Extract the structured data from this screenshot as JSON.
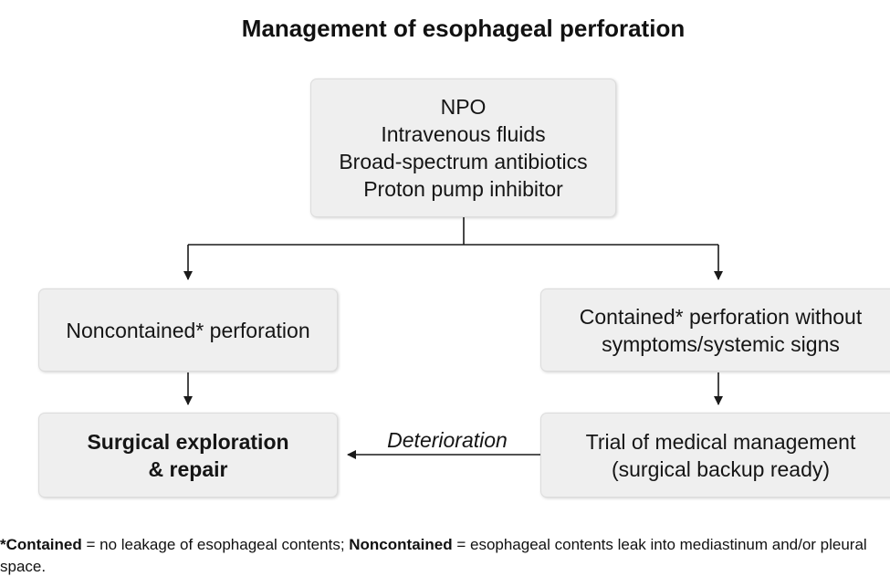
{
  "title": "Management of esophageal perforation",
  "nodes": {
    "initial": {
      "lines": [
        "NPO",
        "Intravenous fluids",
        "Broad-spectrum antibiotics",
        "Proton pump inhibitor"
      ]
    },
    "noncontained": {
      "lines": [
        "Noncontained* perforation"
      ]
    },
    "contained": {
      "lines": [
        "Contained* perforation without",
        "symptoms/systemic signs"
      ]
    },
    "surgical": {
      "lines": [
        "Surgical exploration",
        "& repair"
      ]
    },
    "trial": {
      "lines": [
        "Trial of medical management",
        "(surgical backup ready)"
      ]
    }
  },
  "edges": {
    "deterioration_label": "Deterioration"
  },
  "footnote": {
    "contained_term": "*Contained",
    "contained_def": " = no leakage of esophageal contents; ",
    "noncontained_term": "Noncontained",
    "noncontained_def": " = esophageal contents leak into mediastinum and/or pleural space."
  },
  "colors": {
    "box_fill": "#efefef",
    "box_border": "#dcdcdc",
    "line": "#1a1a1a"
  }
}
